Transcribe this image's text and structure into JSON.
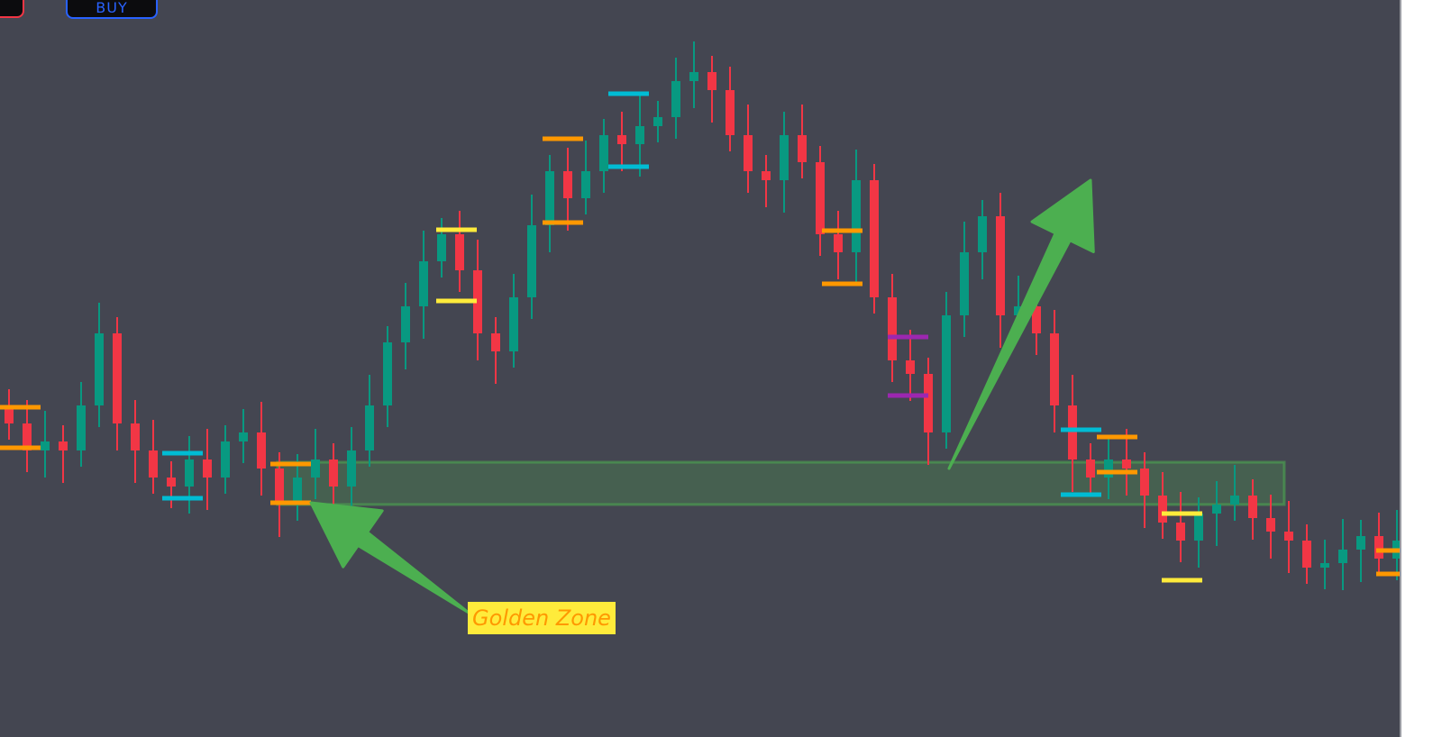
{
  "toolbar": {
    "sell_label": "",
    "buy_label": "BUY"
  },
  "colors": {
    "background": "#444651",
    "up": "#089981",
    "down": "#f23645",
    "zone_fill": "#4caf50",
    "arrow": "#4caf50",
    "label_bg": "#ffeb3b",
    "label_text": "#ff9800"
  },
  "chart_data": {
    "type": "candlestick",
    "title": "",
    "xlabel": "",
    "ylabel": "",
    "axes_visible": false,
    "grid": false,
    "closes": [
      330,
      300,
      310,
      300,
      350,
      430,
      330,
      300,
      270,
      260,
      290,
      270,
      310,
      320,
      280,
      240,
      270,
      290,
      260,
      300,
      350,
      420,
      460,
      510,
      540,
      500,
      430,
      410,
      470,
      550,
      610,
      580,
      610,
      650,
      640,
      660,
      670,
      710,
      720,
      700,
      650,
      610,
      600,
      650,
      620,
      540,
      520,
      600,
      470,
      400,
      385,
      320,
      450,
      520,
      560,
      450,
      460,
      430,
      350,
      290,
      270,
      290,
      280,
      250,
      220,
      200,
      230,
      240,
      250,
      225,
      210,
      200,
      170,
      175,
      190,
      205,
      180,
      200
    ],
    "levels": [
      {
        "color": "#ff9800",
        "start": 0,
        "prices": [
          348,
          303
        ]
      },
      {
        "color": "#00bcd4",
        "start": 9,
        "prices": [
          297,
          247
        ]
      },
      {
        "color": "#ff9800",
        "start": 15,
        "prices": [
          285,
          242
        ]
      },
      {
        "color": "#ffeb3b",
        "start": 24.2,
        "prices": [
          545,
          466
        ]
      },
      {
        "color": "#ff9800",
        "start": 30.1,
        "prices": [
          646,
          553
        ]
      },
      {
        "color": "#00bcd4",
        "start": 33.75,
        "prices": [
          696,
          615
        ]
      },
      {
        "color": "#ff9800",
        "start": 45.6,
        "prices": [
          544,
          485
        ]
      },
      {
        "color": "#9c27b0",
        "start": 49.25,
        "prices": [
          426,
          361
        ]
      },
      {
        "color": "#00bcd4",
        "start": 58.85,
        "prices": [
          323,
          251
        ]
      },
      {
        "color": "#ff9800",
        "start": 60.85,
        "prices": [
          315,
          276
        ]
      },
      {
        "color": "#ffeb3b",
        "start": 64.45,
        "prices": [
          230,
          156
        ]
      },
      {
        "color": "#ff9800",
        "start": 76.35,
        "prices": [
          189,
          163
        ]
      }
    ],
    "zone": {
      "label": "Golden Zone",
      "start": 14.9,
      "end": 70.75,
      "top": 287,
      "bottom": 240
    },
    "arrows": [
      {
        "from": [
          25.5,
          120
        ],
        "to": [
          16.75,
          242
        ]
      },
      {
        "from": [
          52.15,
          280
        ],
        "to": [
          60,
          600
        ]
      }
    ]
  }
}
